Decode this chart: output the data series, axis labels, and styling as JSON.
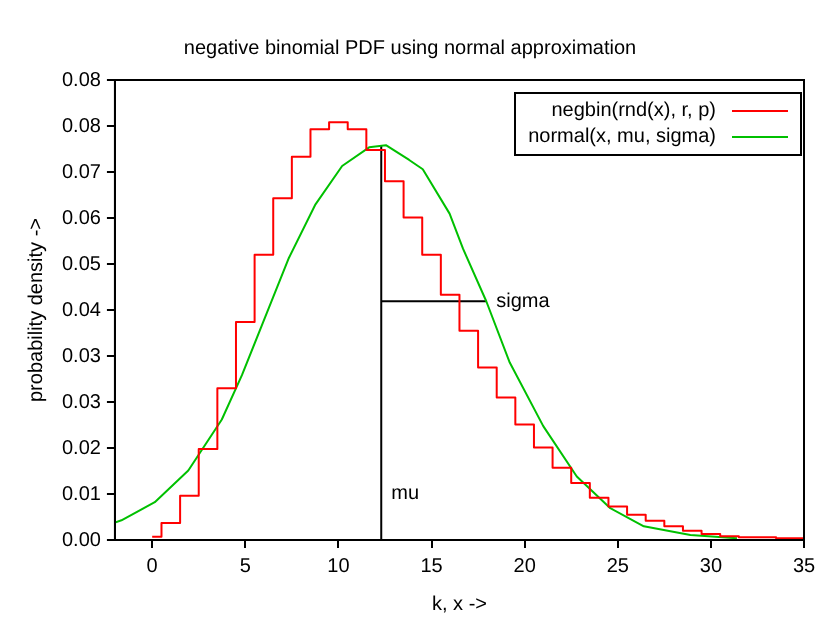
{
  "chart_data": {
    "type": "line",
    "title": "negative binomial PDF using normal approximation",
    "xlabel": "k, x ->",
    "ylabel": "probability density ->",
    "xlim": [
      -2,
      35
    ],
    "xticks": [
      0,
      5,
      10,
      15,
      20,
      25,
      30,
      35
    ],
    "ylim": [
      0,
      0.084
    ],
    "yticks": [
      {
        "value": 0,
        "label": "0.00"
      },
      {
        "value": 0.0084,
        "label": "0.01"
      },
      {
        "value": 0.0168,
        "label": "0.02"
      },
      {
        "value": 0.0252,
        "label": "0.03"
      },
      {
        "value": 0.0336,
        "label": "0.03"
      },
      {
        "value": 0.042,
        "label": "0.04"
      },
      {
        "value": 0.0504,
        "label": "0.05"
      },
      {
        "value": 0.0588,
        "label": "0.06"
      },
      {
        "value": 0.0672,
        "label": "0.07"
      },
      {
        "value": 0.0756,
        "label": "0.08"
      },
      {
        "value": 0.084,
        "label": "0.08"
      }
    ],
    "grid": false,
    "legend": "top right",
    "marker": "none",
    "series": [
      {
        "name": "negbin(rnd(x), r, p)",
        "type": "step",
        "color": "#ff0000",
        "x": [
          0,
          1,
          2,
          3,
          4,
          5,
          6,
          7,
          8,
          9,
          10,
          11,
          12,
          13,
          14,
          15,
          16,
          17,
          18,
          19,
          20,
          21,
          22,
          23,
          24,
          25,
          26,
          27,
          28,
          29,
          30,
          31,
          32,
          33,
          34,
          35
        ],
        "values": [
          0.0006,
          0.0031,
          0.0081,
          0.0166,
          0.0277,
          0.0398,
          0.0521,
          0.0624,
          0.07,
          0.075,
          0.0763,
          0.075,
          0.0712,
          0.0655,
          0.0589,
          0.0521,
          0.0448,
          0.0382,
          0.0315,
          0.026,
          0.0211,
          0.0169,
          0.0132,
          0.0104,
          0.0077,
          0.0061,
          0.0046,
          0.0035,
          0.0025,
          0.0017,
          0.0011,
          0.0007,
          0.0005,
          0.0005,
          0.0003,
          0.0003
        ]
      },
      {
        "name": "normal(x, mu, sigma)",
        "type": "line",
        "color": "#00c000",
        "x": [
          -2,
          -1.65,
          0.14,
          1.94,
          3.74,
          4.82,
          5.9,
          7.34,
          8.77,
          10.2,
          11.65,
          12.55,
          13.8,
          14.53,
          15.97,
          16.69,
          17.94,
          19.2,
          21.0,
          22.8,
          24.6,
          26.4,
          28.9,
          31.4
        ],
        "values": [
          0.0032,
          0.0036,
          0.0069,
          0.0127,
          0.022,
          0.0301,
          0.0393,
          0.0515,
          0.0613,
          0.0683,
          0.0717,
          0.0721,
          0.0694,
          0.0677,
          0.0596,
          0.0532,
          0.0436,
          0.0324,
          0.0208,
          0.0116,
          0.0058,
          0.0025,
          0.0009,
          0.0003
        ]
      },
      {
        "type": "line",
        "color": "#000000",
        "x": [
          12.3,
          12.3
        ],
        "values": [
          0,
          0.0721
        ]
      },
      {
        "type": "line",
        "color": "#000000",
        "x": [
          12.3,
          17.94
        ],
        "values": [
          0.0436,
          0.0436
        ]
      }
    ],
    "annotations": [
      {
        "text": "mu",
        "x": 12.3,
        "y": 0.0085
      },
      {
        "text": "sigma",
        "x": 17.94,
        "y": 0.0436
      }
    ]
  }
}
